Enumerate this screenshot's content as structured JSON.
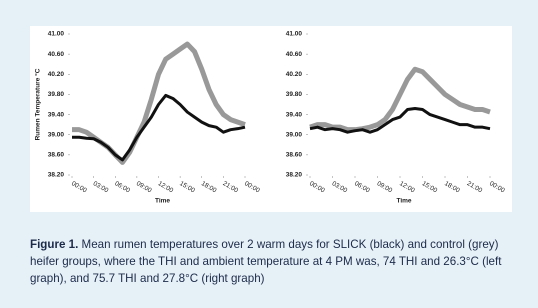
{
  "chart_data": [
    {
      "type": "line",
      "y_label": "Rumen Temperature °C",
      "x_label": "Time",
      "x": [
        0,
        1,
        2,
        3,
        4,
        5,
        6,
        7,
        8,
        9,
        10,
        11,
        12,
        13,
        14,
        15,
        16,
        17,
        18,
        19,
        20,
        21,
        22,
        23,
        24
      ],
      "xlim": [
        0,
        24
      ],
      "xticks": [
        {
          "value": 0,
          "label": "00:00"
        },
        {
          "value": 3,
          "label": "03:00"
        },
        {
          "value": 6,
          "label": "06:00"
        },
        {
          "value": 9,
          "label": "09:00"
        },
        {
          "value": 12,
          "label": "12:00"
        },
        {
          "value": 15,
          "label": "15:00"
        },
        {
          "value": 18,
          "label": "18:00"
        },
        {
          "value": 21,
          "label": "21:00"
        },
        {
          "value": 24,
          "label": "00:00"
        }
      ],
      "ylim": [
        38.2,
        41
      ],
      "yticks": [
        {
          "value": 41,
          "label": "41.00"
        },
        {
          "value": 40.6,
          "label": "40.60"
        },
        {
          "value": 40.2,
          "label": "40.20"
        },
        {
          "value": 39.8,
          "label": "39.80"
        },
        {
          "value": 39.4,
          "label": "39.40"
        },
        {
          "value": 39,
          "label": "39.00"
        },
        {
          "value": 38.6,
          "label": "38.60"
        },
        {
          "value": 38.2,
          "label": "38.20"
        }
      ],
      "series": [
        {
          "color": "#999999",
          "values": [
            39.1,
            39.1,
            39.05,
            38.95,
            38.85,
            38.75,
            38.6,
            38.45,
            38.65,
            38.95,
            39.25,
            39.7,
            40.2,
            40.5,
            40.6,
            40.7,
            40.8,
            40.65,
            40.3,
            39.9,
            39.6,
            39.4,
            39.3,
            39.25,
            39.2
          ]
        },
        {
          "color": "#111111",
          "values": [
            38.95,
            38.95,
            38.93,
            38.92,
            38.85,
            38.75,
            38.6,
            38.5,
            38.7,
            38.95,
            39.15,
            39.35,
            39.6,
            39.78,
            39.72,
            39.6,
            39.45,
            39.35,
            39.25,
            39.18,
            39.15,
            39.05,
            39.1,
            39.12,
            39.15
          ]
        }
      ]
    },
    {
      "type": "line",
      "x_label": "Time",
      "x": [
        0,
        1,
        2,
        3,
        4,
        5,
        6,
        7,
        8,
        9,
        10,
        11,
        12,
        13,
        14,
        15,
        16,
        17,
        18,
        19,
        20,
        21,
        22,
        23,
        24
      ],
      "xlim": [
        0,
        24
      ],
      "xticks": [
        {
          "value": 0,
          "label": "00:00"
        },
        {
          "value": 3,
          "label": "03:00"
        },
        {
          "value": 6,
          "label": "06:00"
        },
        {
          "value": 9,
          "label": "09:00"
        },
        {
          "value": 12,
          "label": "12:00"
        },
        {
          "value": 15,
          "label": "15:00"
        },
        {
          "value": 18,
          "label": "18:00"
        },
        {
          "value": 21,
          "label": "21:00"
        },
        {
          "value": 24,
          "label": "00:00"
        }
      ],
      "ylim": [
        38.2,
        41
      ],
      "yticks": [
        {
          "value": 41,
          "label": "41.00"
        },
        {
          "value": 40.6,
          "label": "40.60"
        },
        {
          "value": 40.2,
          "label": "40.20"
        },
        {
          "value": 39.8,
          "label": "39.80"
        },
        {
          "value": 39.4,
          "label": "39.40"
        },
        {
          "value": 39,
          "label": "39.00"
        },
        {
          "value": 38.6,
          "label": "38.60"
        },
        {
          "value": 38.2,
          "label": "38.20"
        }
      ],
      "series": [
        {
          "color": "#999999",
          "values": [
            39.15,
            39.2,
            39.2,
            39.15,
            39.15,
            39.1,
            39.1,
            39.12,
            39.15,
            39.2,
            39.3,
            39.5,
            39.8,
            40.1,
            40.3,
            40.25,
            40.1,
            39.95,
            39.8,
            39.7,
            39.6,
            39.55,
            39.5,
            39.5,
            39.45
          ]
        },
        {
          "color": "#111111",
          "values": [
            39.12,
            39.15,
            39.1,
            39.12,
            39.1,
            39.05,
            39.08,
            39.1,
            39.05,
            39.1,
            39.2,
            39.3,
            39.35,
            39.5,
            39.52,
            39.5,
            39.4,
            39.35,
            39.3,
            39.25,
            39.2,
            39.2,
            39.15,
            39.15,
            39.12
          ]
        }
      ]
    }
  ],
  "caption": {
    "label": "Figure 1.",
    "text": " Mean rumen temperatures over 2 warm days for SLICK (black) and control (grey) heifer groups, where the THI and ambient temperature at 4 PM was, 74 THI and 26.3°C (left graph), and 75.7 THI and 27.8°C (right graph)"
  }
}
